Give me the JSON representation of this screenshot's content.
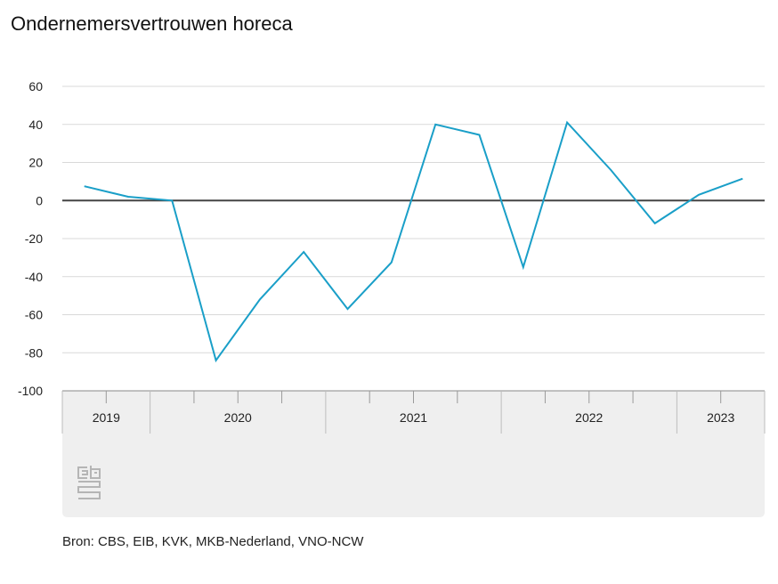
{
  "title": "Ondernemersvertrouwen horeca",
  "source": "Bron: CBS, EIB, KVK, MKB-Nederland, VNO-NCW",
  "colors": {
    "line": "#1a9fc8",
    "grid": "#d9d9d9",
    "zero_line": "#444444",
    "axis_band": "#efefef"
  },
  "chart_data": {
    "type": "line",
    "title": "Ondernemersvertrouwen horeca",
    "xlabel": "",
    "ylabel": "",
    "ylim": [
      -100,
      60
    ],
    "yticks": [
      60,
      40,
      20,
      0,
      -20,
      -40,
      -60,
      -80,
      -100
    ],
    "grid": true,
    "legend": "none",
    "year_groups": [
      {
        "label": "2019",
        "quarters": 2
      },
      {
        "label": "2020",
        "quarters": 4
      },
      {
        "label": "2021",
        "quarters": 4
      },
      {
        "label": "2022",
        "quarters": 4
      },
      {
        "label": "2023",
        "quarters": 2
      }
    ],
    "series": [
      {
        "x": [
          "2019 Q3",
          "2019 Q4",
          "2020 Q1",
          "2020 Q2",
          "2020 Q3",
          "2020 Q4",
          "2021 Q1",
          "2021 Q2",
          "2021 Q3",
          "2021 Q4",
          "2022 Q1",
          "2022 Q2",
          "2022 Q3",
          "2022 Q4",
          "2023 Q1",
          "2023 Q2"
        ],
        "values": [
          7.5,
          2,
          0,
          -84,
          -52,
          -27,
          -57,
          -32.5,
          40,
          34.5,
          -35,
          41,
          16,
          -12,
          3,
          11.5
        ]
      }
    ]
  }
}
